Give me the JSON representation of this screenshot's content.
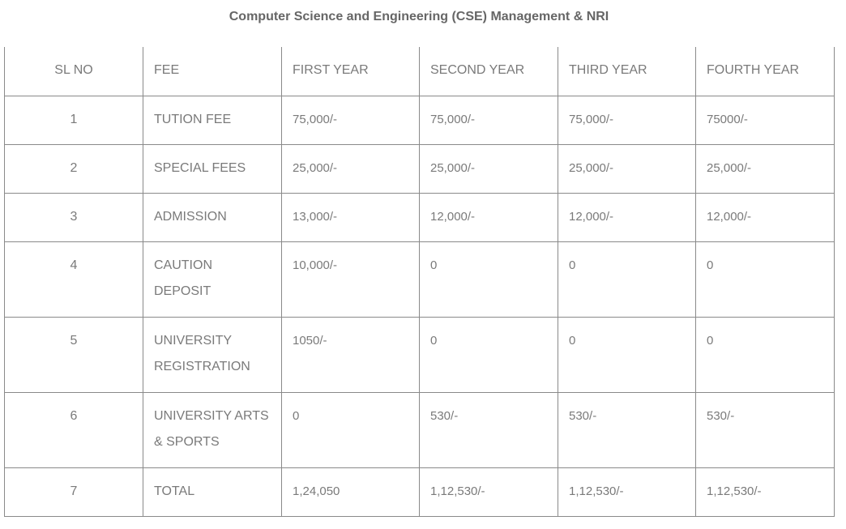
{
  "title": "Computer Science and Engineering (CSE) Management & NRI",
  "headers": [
    "SL NO",
    "FEE",
    "FIRST YEAR",
    "SECOND YEAR",
    "THIRD YEAR",
    "FOURTH YEAR"
  ],
  "rows": [
    [
      "1",
      "TUTION FEE",
      "75,000/-",
      "75,000/-",
      "75,000/-",
      "75000/-"
    ],
    [
      "2",
      "SPECIAL FEES",
      "25,000/-",
      "25,000/-",
      "25,000/-",
      "25,000/-"
    ],
    [
      "3",
      "ADMISSION",
      "13,000/-",
      "12,000/-",
      "12,000/-",
      "12,000/-"
    ],
    [
      "4",
      "CAUTION DEPOSIT",
      "10,000/-",
      "0",
      "0",
      "0"
    ],
    [
      "5",
      "UNIVERSITY REGISTRATION",
      "1050/-",
      "0",
      "0",
      "0"
    ],
    [
      "6",
      "UNIVERSITY ARTS & SPORTS",
      "0",
      "530/-",
      "530/-",
      "530/-"
    ],
    [
      "7",
      "TOTAL",
      "1,24,050",
      "1,12,530/-",
      "1,12,530/-",
      "1,12,530/-"
    ]
  ]
}
